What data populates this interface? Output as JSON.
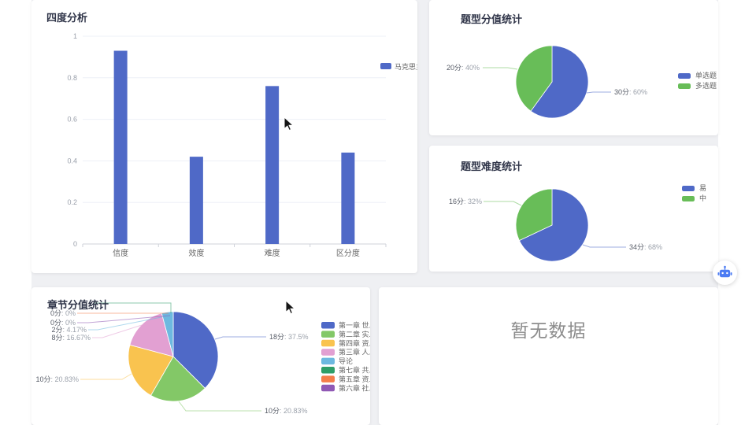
{
  "chart_data": [
    {
      "id": "four-degree-analysis",
      "type": "bar",
      "title": "四度分析",
      "legend": [
        "马克思主义..."
      ],
      "legend_position": "right",
      "categories": [
        "信度",
        "效度",
        "难度",
        "区分度"
      ],
      "values": [
        0.93,
        0.42,
        0.76,
        0.44
      ],
      "ylim": [
        0,
        1
      ],
      "yticks": [
        0,
        0.2,
        0.4,
        0.6,
        0.8,
        1
      ],
      "grid": true,
      "colors": [
        "#4f69c7"
      ]
    },
    {
      "id": "question-type-score",
      "type": "pie",
      "title": "题型分值统计",
      "legend_position": "right",
      "slices": [
        {
          "name": "单选题",
          "score": "30分",
          "pct": 60,
          "pct_label": "60%",
          "label": "30分: 60%",
          "color": "#4f69c7"
        },
        {
          "name": "多选题",
          "score": "20分",
          "pct": 40,
          "pct_label": "40%",
          "label": "20分: 40%",
          "color": "#68bd58"
        }
      ]
    },
    {
      "id": "question-type-difficulty",
      "type": "pie",
      "title": "题型难度统计",
      "legend_position": "right",
      "slices": [
        {
          "name": "易",
          "score": "34分",
          "pct": 68,
          "pct_label": "68%",
          "label": "34分: 68%",
          "color": "#4f69c7"
        },
        {
          "name": "中",
          "score": "16分",
          "pct": 32,
          "pct_label": "32%",
          "label": "16分: 32%",
          "color": "#68bd58"
        }
      ]
    },
    {
      "id": "chapter-score",
      "type": "pie",
      "title": "章节分值统计",
      "legend_position": "right",
      "slices": [
        {
          "name": "第一章 世..",
          "score": "18分",
          "pct": 37.5,
          "pct_label": "37.5%",
          "label": "18分: 37.5%",
          "color": "#4f69c7"
        },
        {
          "name": "第二章 实..",
          "score": "10分",
          "pct": 20.83,
          "pct_label": "20.83%",
          "label": "10分: 20.83%",
          "color": "#83c867"
        },
        {
          "name": "第四章 资..",
          "score": "10分",
          "pct": 20.83,
          "pct_label": "20.83%",
          "label": "10分: 20.83%",
          "color": "#f9c34f"
        },
        {
          "name": "第三章 人..",
          "score": "8分",
          "pct": 16.67,
          "pct_label": "16.67%",
          "label": "8分: 16.67%",
          "color": "#e2a0d2"
        },
        {
          "name": "导论",
          "score": "2分",
          "pct": 4.17,
          "pct_label": "4.17%",
          "label": "2分: 4.17%",
          "color": "#6db9e0"
        },
        {
          "name": "第七章 共..",
          "score": "0分",
          "pct": 0,
          "pct_label": "0%",
          "label": "0分: 0%",
          "color": "#2f9e68"
        },
        {
          "name": "第五章 资..",
          "score": "0分",
          "pct": 0,
          "pct_label": "0%",
          "label": "0分: 0%",
          "color": "#f57d4a"
        },
        {
          "name": "第六章 社..",
          "score": "0分",
          "pct": 0,
          "pct_label": "0%",
          "label": "0分: 0%",
          "color": "#9059b5"
        }
      ]
    }
  ],
  "empty_panel": {
    "text": "暂无数据"
  },
  "assistant_button": {
    "icon": "robot-icon"
  }
}
